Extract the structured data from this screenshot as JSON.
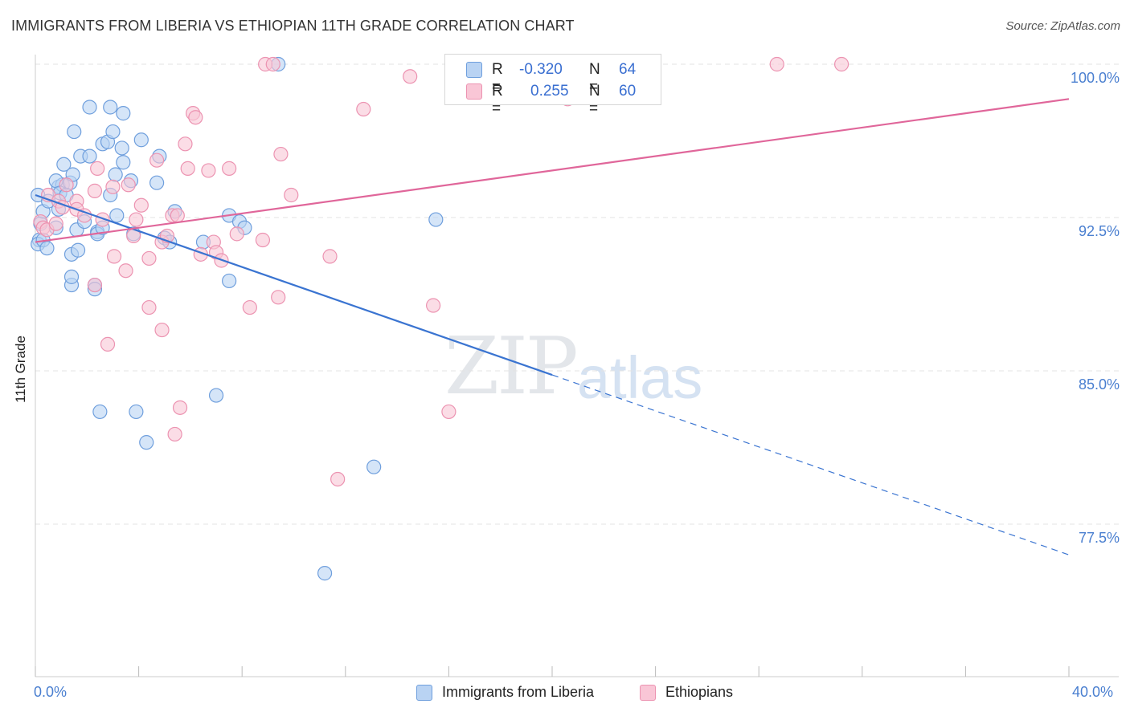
{
  "title": "IMMIGRANTS FROM LIBERIA VS ETHIOPIAN 11TH GRADE CORRELATION CHART",
  "source": "Source: ZipAtlas.com",
  "watermark": {
    "zip": "ZIP",
    "atlas": "atlas"
  },
  "legend": {
    "rows": [
      {
        "r_label": "R =",
        "r_value": "-0.320",
        "n_label": "N =",
        "n_value": "64"
      },
      {
        "r_label": "R =",
        "r_value": "0.255",
        "n_label": "N =",
        "n_value": "60"
      }
    ]
  },
  "bottom_legend": [
    "Immigrants from Liberia",
    "Ethiopians"
  ],
  "colors": {
    "blue_fill": "#b9d3f3",
    "blue_stroke": "#6f9fdd",
    "blue_line": "#3a74d1",
    "pink_fill": "#f9c6d6",
    "pink_stroke": "#ec93b1",
    "pink_line": "#e0669a",
    "tick_text": "#4a7fd0",
    "grid": "#e3e3e3"
  },
  "chart_data": {
    "type": "scatter",
    "title": "IMMIGRANTS FROM LIBERIA VS ETHIOPIAN 11TH GRADE CORRELATION CHART",
    "xlabel": "",
    "ylabel": "11th Grade",
    "xlim": [
      0,
      40
    ],
    "ylim": [
      70.5,
      100.5
    ],
    "x_tick_labels": [
      "0.0%",
      "40.0%"
    ],
    "y_ticks": [
      77.5,
      85.0,
      92.5,
      100.0
    ],
    "y_tick_labels": [
      "77.5%",
      "85.0%",
      "92.5%",
      "100.0%"
    ],
    "grid": true,
    "legend_position": "top-center",
    "series": [
      {
        "name": "Immigrants from Liberia",
        "R": -0.32,
        "N": 64,
        "trend": {
          "x0": 0,
          "y0": 93.6,
          "x1": 40,
          "y1": 76.0,
          "solid_until_x": 20
        },
        "points": [
          [
            0.1,
            93.6
          ],
          [
            0.2,
            92.2
          ],
          [
            0.15,
            91.4
          ],
          [
            0.1,
            91.2
          ],
          [
            0.3,
            91.4
          ],
          [
            0.3,
            92.8
          ],
          [
            0.45,
            91.0
          ],
          [
            0.5,
            93.3
          ],
          [
            0.8,
            92.0
          ],
          [
            0.9,
            92.9
          ],
          [
            0.9,
            94.0
          ],
          [
            1.05,
            94.1
          ],
          [
            1.1,
            95.1
          ],
          [
            1.35,
            94.2
          ],
          [
            1.45,
            94.6
          ],
          [
            0.8,
            94.3
          ],
          [
            0.95,
            93.7
          ],
          [
            1.2,
            93.6
          ],
          [
            1.5,
            96.7
          ],
          [
            1.75,
            95.5
          ],
          [
            2.1,
            95.5
          ],
          [
            2.1,
            97.9
          ],
          [
            2.3,
            89.2
          ],
          [
            2.3,
            89.0
          ],
          [
            1.4,
            89.2
          ],
          [
            1.4,
            89.6
          ],
          [
            1.4,
            90.7
          ],
          [
            1.65,
            90.9
          ],
          [
            1.6,
            91.9
          ],
          [
            1.9,
            92.3
          ],
          [
            2.4,
            91.8
          ],
          [
            2.4,
            91.7
          ],
          [
            2.6,
            92.0
          ],
          [
            2.6,
            96.1
          ],
          [
            2.8,
            96.2
          ],
          [
            2.9,
            93.6
          ],
          [
            3.0,
            96.7
          ],
          [
            2.9,
            97.9
          ],
          [
            3.15,
            92.6
          ],
          [
            3.1,
            94.6
          ],
          [
            3.35,
            95.9
          ],
          [
            3.4,
            97.6
          ],
          [
            3.4,
            95.2
          ],
          [
            3.7,
            94.3
          ],
          [
            3.8,
            91.7
          ],
          [
            4.1,
            96.3
          ],
          [
            4.7,
            94.2
          ],
          [
            4.8,
            95.5
          ],
          [
            5.0,
            91.5
          ],
          [
            5.2,
            91.3
          ],
          [
            5.4,
            92.8
          ],
          [
            6.5,
            91.3
          ],
          [
            7.0,
            83.8
          ],
          [
            7.5,
            92.6
          ],
          [
            7.5,
            89.4
          ],
          [
            7.9,
            92.3
          ],
          [
            8.1,
            92.0
          ],
          [
            9.4,
            100.0
          ],
          [
            11.2,
            75.1
          ],
          [
            13.1,
            80.3
          ],
          [
            15.5,
            92.4
          ],
          [
            4.3,
            81.5
          ],
          [
            3.9,
            83.0
          ],
          [
            2.5,
            83.0
          ]
        ]
      },
      {
        "name": "Ethiopians",
        "R": 0.255,
        "N": 60,
        "trend": {
          "x0": 0,
          "y0": 91.3,
          "x1": 40,
          "y1": 98.3
        },
        "points": [
          [
            0.2,
            92.3
          ],
          [
            0.3,
            92.0
          ],
          [
            0.45,
            91.9
          ],
          [
            0.5,
            93.6
          ],
          [
            0.8,
            92.2
          ],
          [
            0.9,
            93.3
          ],
          [
            1.05,
            93.0
          ],
          [
            1.2,
            94.1
          ],
          [
            1.6,
            93.3
          ],
          [
            1.6,
            92.9
          ],
          [
            1.9,
            92.6
          ],
          [
            2.3,
            93.8
          ],
          [
            2.4,
            94.9
          ],
          [
            2.6,
            92.4
          ],
          [
            2.3,
            89.2
          ],
          [
            3.0,
            94.0
          ],
          [
            3.05,
            90.6
          ],
          [
            3.5,
            89.9
          ],
          [
            3.6,
            94.1
          ],
          [
            3.8,
            91.6
          ],
          [
            3.9,
            92.4
          ],
          [
            4.1,
            93.1
          ],
          [
            4.4,
            90.5
          ],
          [
            4.4,
            88.1
          ],
          [
            4.7,
            95.3
          ],
          [
            4.9,
            87.0
          ],
          [
            4.9,
            91.3
          ],
          [
            5.1,
            91.6
          ],
          [
            5.3,
            92.6
          ],
          [
            5.5,
            92.6
          ],
          [
            5.4,
            81.9
          ],
          [
            5.6,
            83.2
          ],
          [
            5.8,
            96.1
          ],
          [
            5.9,
            94.9
          ],
          [
            6.1,
            97.6
          ],
          [
            6.2,
            97.4
          ],
          [
            6.4,
            90.7
          ],
          [
            6.7,
            94.8
          ],
          [
            6.9,
            91.3
          ],
          [
            7.0,
            90.8
          ],
          [
            7.2,
            90.4
          ],
          [
            7.5,
            94.9
          ],
          [
            7.8,
            91.7
          ],
          [
            8.3,
            88.1
          ],
          [
            8.8,
            91.4
          ],
          [
            8.9,
            100.0
          ],
          [
            9.4,
            88.6
          ],
          [
            9.5,
            95.6
          ],
          [
            9.9,
            93.6
          ],
          [
            11.4,
            90.6
          ],
          [
            11.7,
            79.7
          ],
          [
            12.7,
            97.8
          ],
          [
            14.5,
            99.4
          ],
          [
            15.4,
            88.2
          ],
          [
            16.0,
            83.0
          ],
          [
            20.6,
            98.3
          ],
          [
            28.7,
            100.0
          ],
          [
            31.2,
            100.0
          ],
          [
            9.2,
            100.0
          ],
          [
            2.8,
            86.3
          ]
        ]
      }
    ]
  }
}
